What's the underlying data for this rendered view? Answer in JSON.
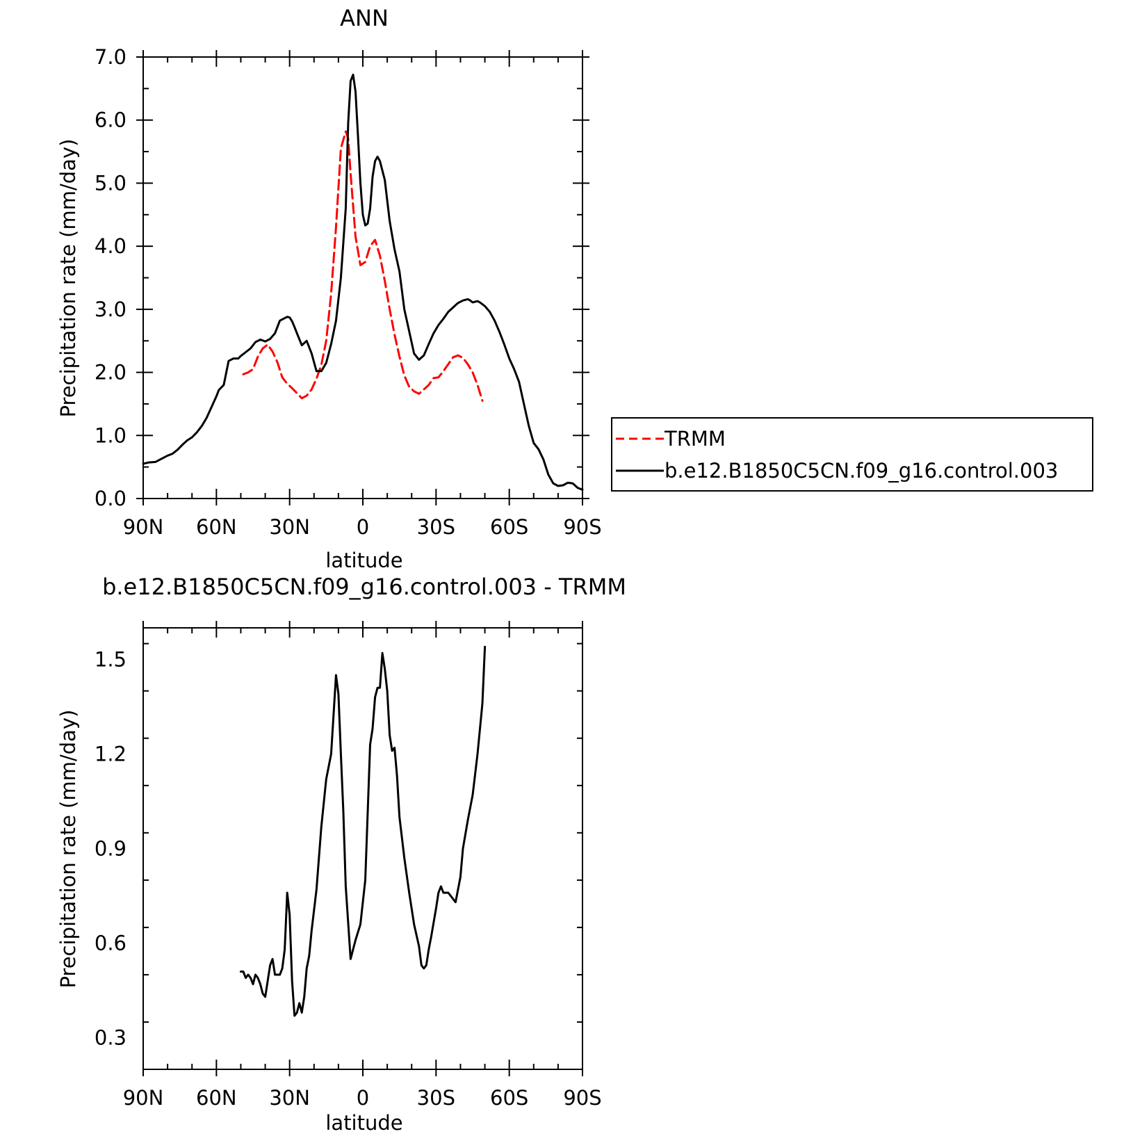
{
  "colors": {
    "model": "#000000",
    "obs": "#ff0000",
    "background": "#ffffff"
  },
  "chart_data": [
    {
      "type": "line",
      "title": "ANN",
      "xlabel": "latitude",
      "ylabel": "Precipitation rate (mm/day)",
      "xlim": [
        90,
        -90
      ],
      "ylim": [
        0,
        7
      ],
      "x_ticks": [
        {
          "value": 90,
          "label": "90N"
        },
        {
          "value": 60,
          "label": "60N"
        },
        {
          "value": 30,
          "label": "30N"
        },
        {
          "value": 0,
          "label": "0"
        },
        {
          "value": -30,
          "label": "30S"
        },
        {
          "value": -60,
          "label": "60S"
        },
        {
          "value": -90,
          "label": "90S"
        }
      ],
      "y_ticks": [
        {
          "value": 0,
          "label": "0.0"
        },
        {
          "value": 1,
          "label": "1.0"
        },
        {
          "value": 2,
          "label": "2.0"
        },
        {
          "value": 3,
          "label": "3.0"
        },
        {
          "value": 4,
          "label": "4.0"
        },
        {
          "value": 5,
          "label": "5.0"
        },
        {
          "value": 6,
          "label": "6.0"
        },
        {
          "value": 7,
          "label": "7.0"
        }
      ],
      "legend": {
        "position": "right",
        "entries": [
          "TRMM",
          "b.e12.B1850C5CN.f09_g16.control.003"
        ]
      },
      "series": [
        {
          "name": "TRMM",
          "style": "dashed",
          "color": "#ff0000",
          "x": [
            49,
            47,
            45,
            43,
            41,
            39,
            37,
            35,
            33,
            31,
            29,
            27,
            25,
            23,
            21,
            19,
            17,
            15,
            13,
            11,
            9,
            7,
            6,
            5,
            3,
            1,
            -1,
            -3,
            -5,
            -7,
            -9,
            -11,
            -13,
            -15,
            -17,
            -19,
            -21,
            -23,
            -25,
            -27,
            -29,
            -31,
            -33,
            -35,
            -37,
            -39,
            -41,
            -43,
            -45,
            -47,
            -49
          ],
          "y": [
            1.97,
            2.0,
            2.05,
            2.25,
            2.38,
            2.44,
            2.33,
            2.16,
            1.92,
            1.82,
            1.75,
            1.67,
            1.59,
            1.63,
            1.73,
            1.9,
            2.12,
            2.5,
            3.25,
            4.3,
            5.55,
            5.82,
            5.71,
            5.15,
            4.15,
            3.7,
            3.75,
            4.0,
            4.1,
            3.85,
            3.45,
            3.0,
            2.6,
            2.25,
            1.95,
            1.77,
            1.7,
            1.66,
            1.73,
            1.8,
            1.91,
            1.92,
            2.02,
            2.13,
            2.24,
            2.27,
            2.23,
            2.13,
            2.0,
            1.8,
            1.55
          ]
        },
        {
          "name": "b.e12.B1850C5CN.f09_g16.control.003",
          "style": "solid",
          "color": "#000000",
          "x": [
            90,
            88,
            85,
            82,
            80,
            78,
            76,
            74,
            72,
            70,
            68,
            66,
            64,
            62,
            60,
            59,
            57,
            55,
            53,
            51,
            50,
            48,
            46,
            44,
            42,
            40,
            38,
            36,
            34,
            32,
            31,
            30,
            29,
            28,
            27,
            25,
            23,
            21,
            19,
            17,
            15,
            13,
            11,
            9,
            7,
            6,
            5,
            4,
            3,
            2,
            1,
            0,
            -1,
            -2,
            -3,
            -4,
            -5,
            -6,
            -7,
            -9,
            -11,
            -13,
            -15,
            -17,
            -19,
            -21,
            -23,
            -25,
            -27,
            -29,
            -31,
            -33,
            -35,
            -37,
            -39,
            -41,
            -43,
            -44,
            -45,
            -46,
            -47,
            -48,
            -50,
            -52,
            -54,
            -56,
            -58,
            -60,
            -62,
            -64,
            -66,
            -68,
            -70,
            -72,
            -74,
            -76,
            -78,
            -80,
            -82,
            -84,
            -86,
            -88,
            -90
          ],
          "y": [
            0.55,
            0.57,
            0.58,
            0.64,
            0.68,
            0.71,
            0.77,
            0.85,
            0.92,
            0.97,
            1.05,
            1.15,
            1.28,
            1.45,
            1.62,
            1.72,
            1.8,
            2.18,
            2.22,
            2.22,
            2.26,
            2.32,
            2.38,
            2.48,
            2.52,
            2.49,
            2.53,
            2.62,
            2.82,
            2.86,
            2.88,
            2.87,
            2.81,
            2.72,
            2.62,
            2.43,
            2.5,
            2.3,
            2.02,
            2.02,
            2.15,
            2.45,
            2.82,
            3.5,
            4.6,
            5.95,
            6.62,
            6.72,
            6.45,
            5.75,
            5.0,
            4.5,
            4.33,
            4.36,
            4.6,
            5.1,
            5.35,
            5.42,
            5.35,
            5.05,
            4.4,
            3.95,
            3.6,
            3.0,
            2.65,
            2.3,
            2.2,
            2.27,
            2.45,
            2.62,
            2.75,
            2.85,
            2.96,
            3.03,
            3.1,
            3.14,
            3.16,
            3.14,
            3.11,
            3.12,
            3.13,
            3.11,
            3.05,
            2.96,
            2.82,
            2.64,
            2.44,
            2.22,
            2.05,
            1.85,
            1.5,
            1.15,
            0.88,
            0.78,
            0.62,
            0.38,
            0.24,
            0.2,
            0.21,
            0.25,
            0.24,
            0.17,
            0.14
          ]
        }
      ]
    },
    {
      "type": "line",
      "title": "b.e12.B1850C5CN.f09_g16.control.003 - TRMM",
      "xlabel": "latitude",
      "ylabel": "Precipitation rate (mm/day)",
      "xlim": [
        90,
        -90
      ],
      "ylim": [
        0.2,
        1.6
      ],
      "x_ticks": [
        {
          "value": 90,
          "label": "90N"
        },
        {
          "value": 60,
          "label": "60N"
        },
        {
          "value": 30,
          "label": "30N"
        },
        {
          "value": 0,
          "label": "0"
        },
        {
          "value": -30,
          "label": "30S"
        },
        {
          "value": -60,
          "label": "60S"
        },
        {
          "value": -90,
          "label": "90S"
        }
      ],
      "y_ticks": [
        {
          "value": 0.3,
          "label": "0.3"
        },
        {
          "value": 0.6,
          "label": "0.6"
        },
        {
          "value": 0.9,
          "label": "0.9"
        },
        {
          "value": 1.2,
          "label": "1.2"
        },
        {
          "value": 1.5,
          "label": "1.5"
        }
      ],
      "series": [
        {
          "style": "solid",
          "color": "#000000",
          "x": [
            50,
            49,
            48,
            47,
            46,
            45,
            44,
            43,
            42,
            41,
            40,
            39,
            38,
            37,
            36,
            35,
            34,
            33,
            32,
            31,
            30,
            29,
            28,
            27,
            26,
            25,
            24,
            23,
            22,
            21,
            19,
            17,
            15,
            13,
            11,
            10,
            9,
            8,
            7,
            5,
            3,
            1,
            -1,
            -3,
            -4,
            -5,
            -6,
            -7,
            -8,
            -9,
            -10,
            -11,
            -12,
            -13,
            -14,
            -15,
            -17,
            -19,
            -21,
            -23,
            -24,
            -25,
            -26,
            -27,
            -28,
            -30,
            -31,
            -32,
            -33,
            -34,
            -35,
            -36,
            -37,
            -38,
            -40,
            -41,
            -43,
            -45,
            -47,
            -49,
            -50
          ],
          "y": [
            0.51,
            0.51,
            0.49,
            0.5,
            0.49,
            0.47,
            0.5,
            0.49,
            0.47,
            0.44,
            0.43,
            0.48,
            0.53,
            0.55,
            0.5,
            0.5,
            0.5,
            0.52,
            0.58,
            0.76,
            0.69,
            0.48,
            0.37,
            0.38,
            0.41,
            0.38,
            0.43,
            0.52,
            0.56,
            0.64,
            0.77,
            0.97,
            1.12,
            1.2,
            1.45,
            1.39,
            1.2,
            1.02,
            0.78,
            0.55,
            0.61,
            0.66,
            0.8,
            1.23,
            1.28,
            1.38,
            1.41,
            1.41,
            1.52,
            1.47,
            1.4,
            1.26,
            1.21,
            1.22,
            1.13,
            1.0,
            0.87,
            0.76,
            0.66,
            0.59,
            0.53,
            0.52,
            0.53,
            0.58,
            0.62,
            0.71,
            0.76,
            0.78,
            0.76,
            0.76,
            0.76,
            0.75,
            0.74,
            0.73,
            0.81,
            0.9,
            0.99,
            1.07,
            1.2,
            1.36,
            1.54
          ]
        }
      ]
    }
  ]
}
